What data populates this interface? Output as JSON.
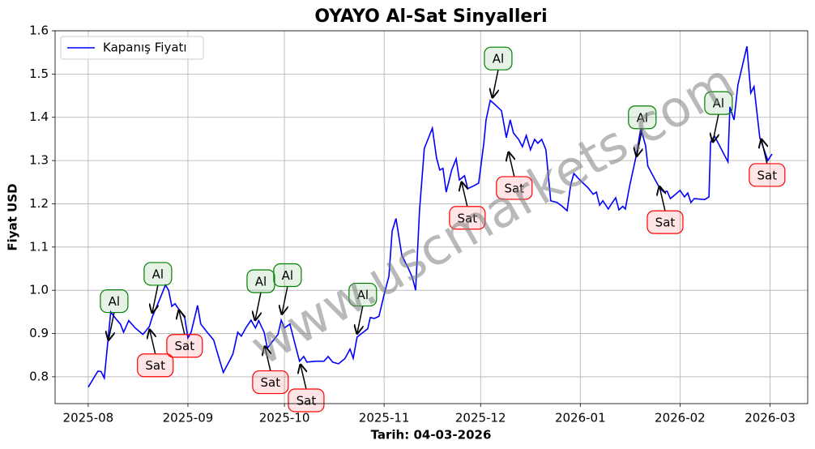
{
  "chart_data": {
    "type": "line",
    "title": "OYAYO Al-Sat Sinyalleri",
    "x_label": "Tarih: 04-03-2026",
    "y_label": "Fiyat USD",
    "watermark": "www.uscmarkets.com",
    "legend": "upper left",
    "grid": true,
    "xlim": [
      -10.3,
      223.7
    ],
    "ylim": [
      0.738,
      1.6
    ],
    "xticks": [
      {
        "value": 0,
        "label": "2025-08"
      },
      {
        "value": 31,
        "label": "2025-09"
      },
      {
        "value": 61,
        "label": "2025-10"
      },
      {
        "value": 92,
        "label": "2025-11"
      },
      {
        "value": 122,
        "label": "2025-12"
      },
      {
        "value": 153,
        "label": "2026-01"
      },
      {
        "value": 184,
        "label": "2026-02"
      },
      {
        "value": 212,
        "label": "2026-03"
      }
    ],
    "yticks": [
      0.8,
      0.9,
      {
        "value": 1,
        "label": "1.0"
      },
      1.1,
      1.2,
      1.3,
      1.4,
      1.5,
      1.6
    ],
    "x": [
      0,
      3,
      4,
      5,
      7,
      8.5,
      10,
      11,
      12.6,
      14.6,
      17,
      19,
      20,
      22,
      24,
      25,
      26,
      27,
      28,
      30,
      31,
      32,
      34,
      35,
      37,
      39,
      40.5,
      42,
      44,
      45,
      46.5,
      47.6,
      49,
      50.6,
      52,
      53,
      54.7,
      55.7,
      57,
      59,
      60,
      61,
      62.7,
      64.5,
      65.7,
      67,
      68,
      70.8,
      73.3,
      74.6,
      76,
      77.8,
      79.8,
      81.4,
      82.4,
      83.6,
      85,
      86.9,
      87.7,
      89,
      90.4,
      92,
      93.5,
      94.5,
      95.7,
      97.5,
      99.7,
      100.8,
      101.8,
      103,
      104.5,
      107,
      108.3,
      109.3,
      110.3,
      111.3,
      113,
      114.4,
      115.4,
      117,
      118,
      120,
      121.4,
      123,
      123.7,
      125,
      126.7,
      128.5,
      130,
      131.2,
      132.2,
      133.8,
      135,
      136.2,
      137.5,
      138.8,
      139.8,
      141,
      142.3,
      143.8,
      145.8,
      147.4,
      148.9,
      150,
      151,
      153,
      155.4,
      157,
      158,
      159,
      160,
      161.7,
      162.7,
      164,
      165,
      166.2,
      167,
      168.3,
      170.5,
      171.8,
      173.3,
      174,
      176.3,
      177.8,
      179,
      180,
      181,
      182.6,
      184,
      185.4,
      186.4,
      187.4,
      188.4,
      191.7,
      193,
      193.5,
      194.7,
      198.9,
      199.5,
      200.8,
      202,
      204.8,
      206,
      207,
      208.8,
      210,
      211.3,
      212.6
    ],
    "series": [
      {
        "name": "Kapanış Fiyatı",
        "color": "#0000ff",
        "values": [
          0.776,
          0.813,
          0.812,
          0.797,
          0.95,
          0.935,
          0.922,
          0.903,
          0.93,
          0.913,
          0.898,
          0.916,
          0.94,
          0.975,
          1.012,
          1.0,
          0.963,
          0.969,
          0.958,
          0.937,
          0.89,
          0.903,
          0.965,
          0.922,
          0.903,
          0.885,
          0.847,
          0.81,
          0.838,
          0.853,
          0.903,
          0.894,
          0.913,
          0.931,
          0.913,
          0.93,
          0.903,
          0.866,
          0.879,
          0.898,
          0.931,
          0.913,
          0.922,
          0.87,
          0.836,
          0.847,
          0.834,
          0.836,
          0.836,
          0.847,
          0.834,
          0.83,
          0.842,
          0.864,
          0.843,
          0.892,
          0.9,
          0.911,
          0.937,
          0.935,
          0.94,
          0.99,
          1.033,
          1.137,
          1.166,
          1.081,
          1.048,
          1.029,
          1.0,
          1.184,
          1.328,
          1.375,
          1.306,
          1.278,
          1.282,
          1.227,
          1.278,
          1.304,
          1.255,
          1.265,
          1.235,
          1.242,
          1.248,
          1.34,
          1.394,
          1.439,
          1.428,
          1.415,
          1.353,
          1.394,
          1.364,
          1.349,
          1.332,
          1.358,
          1.325,
          1.349,
          1.34,
          1.349,
          1.325,
          1.207,
          1.203,
          1.194,
          1.184,
          1.244,
          1.27,
          1.254,
          1.237,
          1.222,
          1.227,
          1.197,
          1.207,
          1.188,
          1.2,
          1.214,
          1.186,
          1.194,
          1.188,
          1.24,
          1.315,
          1.375,
          1.334,
          1.287,
          1.255,
          1.235,
          1.227,
          1.229,
          1.212,
          1.222,
          1.231,
          1.216,
          1.225,
          1.203,
          1.212,
          1.21,
          1.216,
          1.343,
          1.357,
          1.297,
          1.424,
          1.394,
          1.475,
          1.564,
          1.456,
          1.471,
          1.353,
          1.328,
          1.3,
          1.315
        ]
      }
    ],
    "annotations": [
      {
        "text": "Al",
        "x": 6.3,
        "y": 0.885,
        "color": "#008000"
      },
      {
        "text": "Al",
        "x": 19.9,
        "y": 0.948,
        "color": "#008000"
      },
      {
        "text": "Al",
        "x": 51.9,
        "y": 0.931,
        "color": "#008000"
      },
      {
        "text": "Al",
        "x": 60.2,
        "y": 0.945,
        "color": "#008000"
      },
      {
        "text": "Al",
        "x": 83.6,
        "y": 0.9,
        "color": "#008000"
      },
      {
        "text": "Al",
        "x": 125.7,
        "y": 1.446,
        "color": "#008000"
      },
      {
        "text": "Al",
        "x": 170.5,
        "y": 1.31,
        "color": "#008000"
      },
      {
        "text": "Al",
        "x": 194.2,
        "y": 1.343,
        "color": "#008000"
      },
      {
        "text": "Sat",
        "x": 19.1,
        "y": 0.909,
        "color": "#ff0000"
      },
      {
        "text": "Sat",
        "x": 28.2,
        "y": 0.954,
        "color": "#ff0000"
      },
      {
        "text": "Sat",
        "x": 54.9,
        "y": 0.87,
        "color": "#ff0000"
      },
      {
        "text": "Sat",
        "x": 66,
        "y": 0.828,
        "color": "#ff0000"
      },
      {
        "text": "Sat",
        "x": 116.1,
        "y": 1.25,
        "color": "#ff0000"
      },
      {
        "text": "Sat",
        "x": 130.7,
        "y": 1.319,
        "color": "#ff0000"
      },
      {
        "text": "Sat",
        "x": 177.6,
        "y": 1.24,
        "color": "#ff0000"
      },
      {
        "text": "Sat",
        "x": 209.3,
        "y": 1.349,
        "color": "#ff0000"
      }
    ]
  }
}
